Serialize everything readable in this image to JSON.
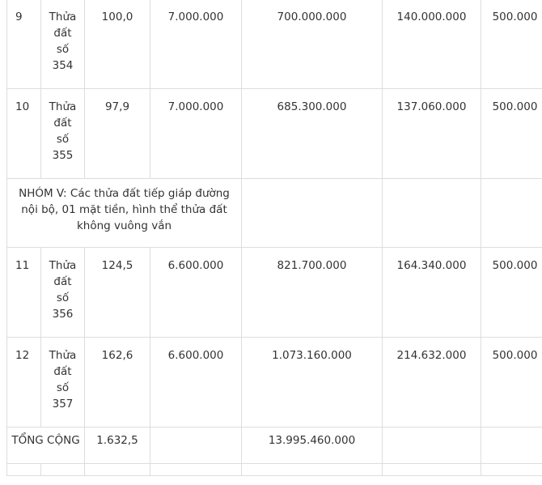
{
  "rows_before_group": [
    {
      "stt": "9",
      "parcel": [
        "Thửa",
        "đất",
        "số",
        "354"
      ],
      "area": "100,0",
      "unit_price": "7.000.000",
      "total_price": "700.000.000",
      "deposit": "140.000.000",
      "fee": "500.000"
    },
    {
      "stt": "10",
      "parcel": [
        "Thửa",
        "đất",
        "số",
        "355"
      ],
      "area": "97,9",
      "unit_price": "7.000.000",
      "total_price": "685.300.000",
      "deposit": "137.060.000",
      "fee": "500.000"
    }
  ],
  "group_heading": "NHÓM V: Các thửa đất tiếp giáp đường nội bộ, 01 mặt tiền, hình thể thửa đất không vuông vắn",
  "rows_after_group": [
    {
      "stt": "11",
      "parcel": [
        "Thửa",
        "đất",
        "số",
        "356"
      ],
      "area": "124,5",
      "unit_price": "6.600.000",
      "total_price": "821.700.000",
      "deposit": "164.340.000",
      "fee": "500.000"
    },
    {
      "stt": "12",
      "parcel": [
        "Thửa",
        "đất",
        "số",
        "357"
      ],
      "area": "162,6",
      "unit_price": "6.600.000",
      "total_price": "1.073.160.000",
      "deposit": "214.632.000",
      "fee": "500.000"
    }
  ],
  "total_row": {
    "label": "TỔNG CỘNG",
    "area": "1.632,5",
    "total_price": "13.995.460.000"
  }
}
